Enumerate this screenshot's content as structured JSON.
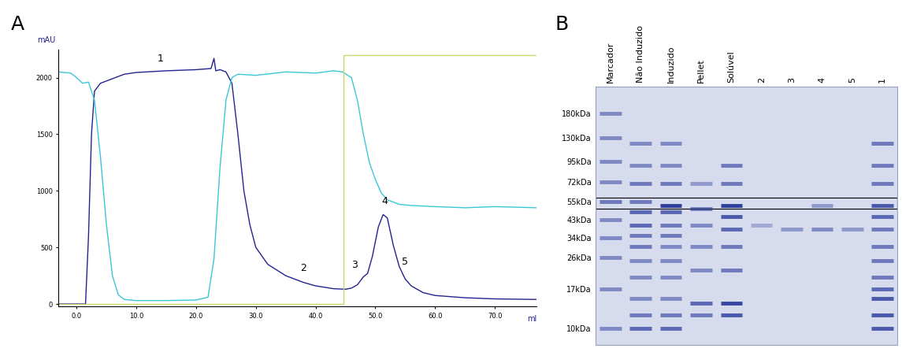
{
  "panel_labels": [
    "A",
    "B"
  ],
  "chart_data": {
    "type": "line",
    "x_label": "ml",
    "y_label": "mAU",
    "xlim": [
      -3,
      77
    ],
    "ylim": [
      -20,
      2250
    ],
    "xticks": [
      {
        "value": 0,
        "label": "0.0"
      },
      {
        "value": 10,
        "label": "10.0"
      },
      {
        "value": 20,
        "label": "20.0"
      },
      {
        "value": 30,
        "label": "30.0"
      },
      {
        "value": 40,
        "label": "40.0"
      },
      {
        "value": 50,
        "label": "50.0"
      },
      {
        "value": 60,
        "label": "60.0"
      },
      {
        "value": 70,
        "label": "70.0"
      }
    ],
    "yticks": [
      0,
      500,
      1000,
      1500,
      2000
    ],
    "grid": false,
    "series": [
      {
        "color": "#23238f",
        "x": [
          -3,
          1.5,
          2,
          2.5,
          3,
          4,
          6,
          8,
          10,
          15,
          20,
          22.5,
          23,
          23.3,
          24,
          25,
          26,
          27,
          28,
          29,
          30,
          32,
          35,
          38,
          40,
          43,
          45,
          46,
          47,
          48,
          48.7,
          49.5,
          50.5,
          51.3,
          52,
          53,
          54,
          55,
          56,
          58,
          60,
          65,
          70,
          77
        ],
        "values": [
          0,
          0,
          600,
          1500,
          1880,
          1950,
          1990,
          2030,
          2045,
          2060,
          2070,
          2080,
          2170,
          2060,
          2070,
          2050,
          1950,
          1500,
          1000,
          700,
          500,
          350,
          250,
          190,
          160,
          135,
          130,
          140,
          170,
          240,
          270,
          420,
          680,
          790,
          760,
          520,
          330,
          220,
          160,
          100,
          75,
          55,
          45,
          40
        ]
      },
      {
        "color": "#3cc6d6",
        "x": [
          -3,
          -1,
          0,
          1,
          2,
          3,
          4,
          5,
          6,
          7,
          8,
          10,
          15,
          20,
          22,
          23,
          24,
          25,
          26,
          27,
          30,
          35,
          40,
          43,
          44.5,
          46,
          47,
          48,
          49,
          50,
          51,
          52,
          54,
          56,
          60,
          65,
          70,
          77
        ],
        "values": [
          2050,
          2040,
          2000,
          1950,
          1960,
          1800,
          1300,
          700,
          250,
          80,
          40,
          30,
          30,
          35,
          60,
          400,
          1200,
          1800,
          2000,
          2030,
          2020,
          2050,
          2040,
          2060,
          2050,
          2000,
          1800,
          1500,
          1250,
          1100,
          980,
          920,
          880,
          870,
          860,
          850,
          860,
          850
        ]
      },
      {
        "color": "#c9d76c",
        "x": [
          -3,
          44.7,
          44.7,
          77
        ],
        "values": [
          0,
          0,
          2200,
          2200
        ]
      }
    ],
    "annotations": [
      {
        "text": "1",
        "x": 14,
        "y": 2120
      },
      {
        "text": "2",
        "x": 38,
        "y": 270
      },
      {
        "text": "3",
        "x": 46.5,
        "y": 300
      },
      {
        "text": "4",
        "x": 51.5,
        "y": 860
      },
      {
        "text": "5",
        "x": 55,
        "y": 330
      }
    ]
  },
  "gel_image": {
    "ylim": [
      8,
      260
    ],
    "markers": [
      {
        "value": 180,
        "label": "180kDa"
      },
      {
        "value": 130,
        "label": "130kDa"
      },
      {
        "value": 95,
        "label": "95kDa"
      },
      {
        "value": 72,
        "label": "72kDa"
      },
      {
        "value": 55,
        "label": "55kDa"
      },
      {
        "value": 43,
        "label": "43kDa"
      },
      {
        "value": 34,
        "label": "34kDa"
      },
      {
        "value": 26,
        "label": "26kDa"
      },
      {
        "value": 17,
        "label": "17kDa"
      },
      {
        "value": 10,
        "label": "10kDa"
      }
    ],
    "highlight_box": [
      50,
      58
    ],
    "lanes": [
      {
        "label": "Marcador",
        "bands": [
          180,
          130,
          95,
          72,
          55,
          43,
          34,
          26,
          17,
          10
        ],
        "band_intensity": [
          0.5,
          0.5,
          0.5,
          0.5,
          0.6,
          0.5,
          0.5,
          0.5,
          0.5,
          0.5
        ]
      },
      {
        "label": "Não Induzido",
        "bands": [
          120,
          90,
          70,
          55,
          48,
          40,
          35,
          30,
          25,
          20,
          15,
          12,
          10
        ],
        "band_intensity": [
          0.5,
          0.5,
          0.6,
          0.6,
          0.7,
          0.7,
          0.6,
          0.6,
          0.5,
          0.5,
          0.5,
          0.6,
          0.7
        ]
      },
      {
        "label": "Induzido",
        "bands": [
          120,
          90,
          70,
          52,
          48,
          40,
          35,
          30,
          25,
          20,
          15,
          12,
          10
        ],
        "band_intensity": [
          0.5,
          0.5,
          0.6,
          0.95,
          0.7,
          0.6,
          0.6,
          0.5,
          0.5,
          0.5,
          0.5,
          0.6,
          0.7
        ]
      },
      {
        "label": "Pellet",
        "bands": [
          70,
          50,
          40,
          30,
          22,
          14,
          12
        ],
        "band_intensity": [
          0.4,
          0.6,
          0.5,
          0.5,
          0.5,
          0.7,
          0.6
        ]
      },
      {
        "label": "Solúvel",
        "bands": [
          90,
          70,
          52,
          45,
          38,
          30,
          22,
          14,
          12
        ],
        "band_intensity": [
          0.6,
          0.6,
          0.95,
          0.8,
          0.7,
          0.6,
          0.6,
          0.9,
          0.8
        ]
      },
      {
        "label": "2",
        "bands": [
          40
        ],
        "band_intensity": [
          0.3
        ]
      },
      {
        "label": "3",
        "bands": [
          38
        ],
        "band_intensity": [
          0.4
        ]
      },
      {
        "label": "4",
        "bands": [
          52,
          38
        ],
        "band_intensity": [
          0.4,
          0.5
        ]
      },
      {
        "label": "5",
        "bands": [
          38
        ],
        "band_intensity": [
          0.4
        ]
      },
      {
        "label": "1",
        "bands": [
          120,
          90,
          70,
          52,
          45,
          38,
          30,
          25,
          20,
          17,
          15,
          12,
          10
        ],
        "band_intensity": [
          0.6,
          0.6,
          0.6,
          0.8,
          0.7,
          0.6,
          0.6,
          0.6,
          0.6,
          0.7,
          0.8,
          0.8,
          0.8
        ]
      }
    ]
  }
}
